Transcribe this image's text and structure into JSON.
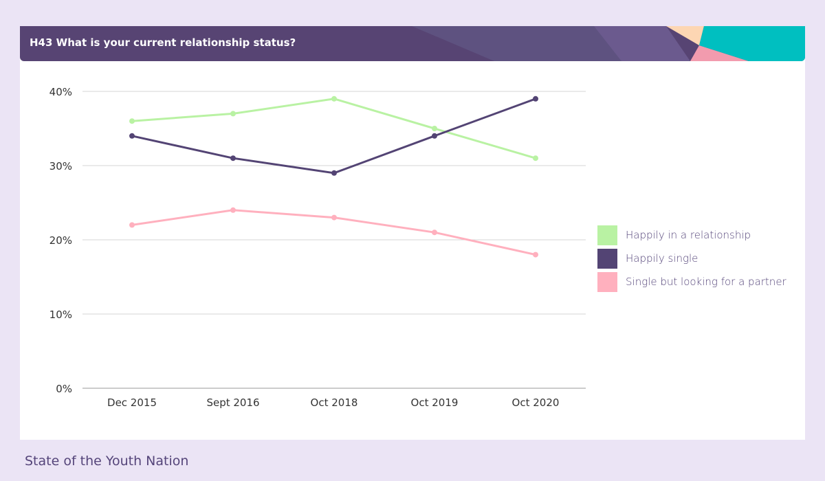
{
  "header": {
    "title": "H43 What is your current relationship status?"
  },
  "footer": {
    "brand": "State of the Youth Nation"
  },
  "colors": {
    "header_bg": "#574473",
    "teal": "#00bfc0",
    "pink_accent": "#f29bae",
    "peach": "#fdd6b3"
  },
  "chart_data": {
    "type": "line",
    "title": "H43 What is your current relationship status?",
    "categories": [
      "Dec 2015",
      "Sept 2016",
      "Oct 2018",
      "Oct 2019",
      "Oct 2020"
    ],
    "yticks": [
      "0%",
      "10%",
      "20%",
      "30%",
      "40%"
    ],
    "ylim": [
      0,
      40
    ],
    "grid": true,
    "legend_position": "right",
    "series": [
      {
        "name": "Happily in a relationship",
        "color": "#b9f2a3",
        "values": [
          36,
          37,
          39,
          35,
          31
        ]
      },
      {
        "name": "Happily single",
        "color": "#534474",
        "values": [
          34,
          31,
          29,
          34,
          39
        ]
      },
      {
        "name": "Single but looking for a partner",
        "color": "#ffb0be",
        "values": [
          22,
          24,
          23,
          21,
          18
        ]
      }
    ]
  }
}
